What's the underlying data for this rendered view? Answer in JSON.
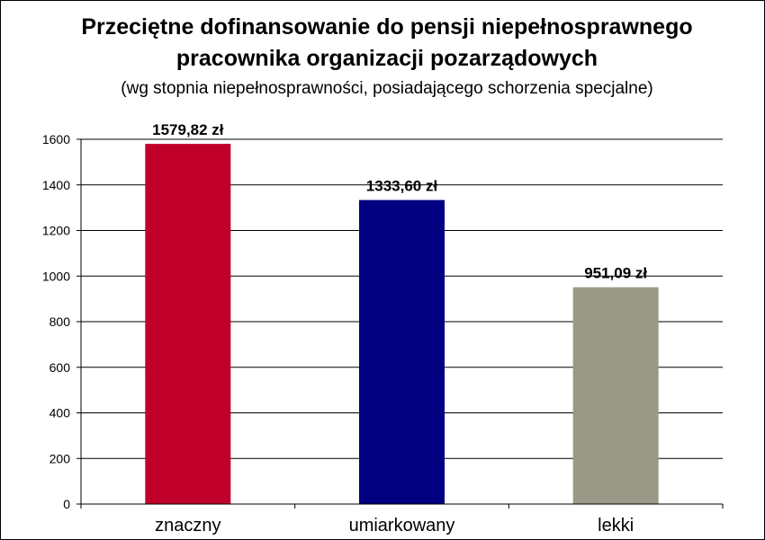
{
  "chart_data": {
    "type": "bar",
    "title_line1": "Przeciętne dofinansowanie do pensji niepełnosprawnego",
    "title_line2": "pracownika organizacji pozarządowych",
    "subtitle": "(wg stopnia niepełnosprawności, posiadającego schorzenia specjalne)",
    "xlabel": "",
    "ylabel": "",
    "categories": [
      "znaczny",
      "umiarkowany",
      "lekki"
    ],
    "values": [
      1579.82,
      1333.6,
      951.09
    ],
    "data_labels": [
      "1579,82 zł",
      "1333,60 zł",
      "951,09 zł"
    ],
    "colors": [
      "#c0002a",
      "#000080",
      "#999988"
    ],
    "ylim": [
      0,
      1600
    ],
    "yticks": [
      0,
      200,
      400,
      600,
      800,
      1000,
      1200,
      1400,
      1600
    ],
    "grid": true,
    "legend": "none"
  }
}
